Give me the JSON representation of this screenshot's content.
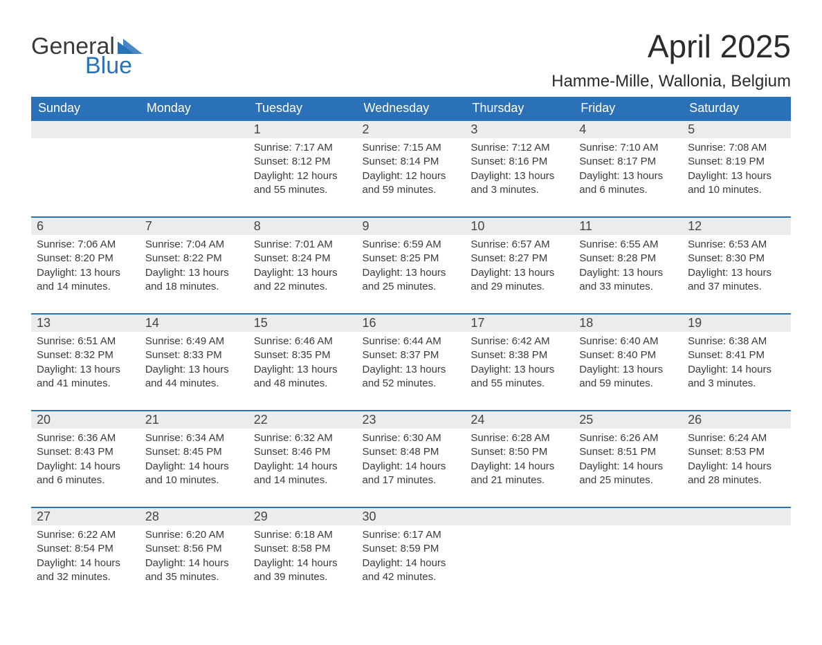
{
  "logo": {
    "text1": "General",
    "text2": "Blue",
    "tri_color": "#2a71b8"
  },
  "title": "April 2025",
  "location": "Hamme-Mille, Wallonia, Belgium",
  "colors": {
    "header_bg": "#2a71b8",
    "header_text": "#ffffff",
    "daynum_bg": "#ececec",
    "row_border": "#2a71b8",
    "body_text": "#3a3a3a",
    "page_bg": "#ffffff"
  },
  "fonts": {
    "title_size": 46,
    "location_size": 24,
    "header_size": 18,
    "cell_size": 15
  },
  "day_labels": [
    "Sunday",
    "Monday",
    "Tuesday",
    "Wednesday",
    "Thursday",
    "Friday",
    "Saturday"
  ],
  "weeks": [
    [
      null,
      null,
      {
        "num": "1",
        "sunrise": "7:17 AM",
        "sunset": "8:12 PM",
        "daylight": "12 hours and 55 minutes."
      },
      {
        "num": "2",
        "sunrise": "7:15 AM",
        "sunset": "8:14 PM",
        "daylight": "12 hours and 59 minutes."
      },
      {
        "num": "3",
        "sunrise": "7:12 AM",
        "sunset": "8:16 PM",
        "daylight": "13 hours and 3 minutes."
      },
      {
        "num": "4",
        "sunrise": "7:10 AM",
        "sunset": "8:17 PM",
        "daylight": "13 hours and 6 minutes."
      },
      {
        "num": "5",
        "sunrise": "7:08 AM",
        "sunset": "8:19 PM",
        "daylight": "13 hours and 10 minutes."
      }
    ],
    [
      {
        "num": "6",
        "sunrise": "7:06 AM",
        "sunset": "8:20 PM",
        "daylight": "13 hours and 14 minutes."
      },
      {
        "num": "7",
        "sunrise": "7:04 AM",
        "sunset": "8:22 PM",
        "daylight": "13 hours and 18 minutes."
      },
      {
        "num": "8",
        "sunrise": "7:01 AM",
        "sunset": "8:24 PM",
        "daylight": "13 hours and 22 minutes."
      },
      {
        "num": "9",
        "sunrise": "6:59 AM",
        "sunset": "8:25 PM",
        "daylight": "13 hours and 25 minutes."
      },
      {
        "num": "10",
        "sunrise": "6:57 AM",
        "sunset": "8:27 PM",
        "daylight": "13 hours and 29 minutes."
      },
      {
        "num": "11",
        "sunrise": "6:55 AM",
        "sunset": "8:28 PM",
        "daylight": "13 hours and 33 minutes."
      },
      {
        "num": "12",
        "sunrise": "6:53 AM",
        "sunset": "8:30 PM",
        "daylight": "13 hours and 37 minutes."
      }
    ],
    [
      {
        "num": "13",
        "sunrise": "6:51 AM",
        "sunset": "8:32 PM",
        "daylight": "13 hours and 41 minutes."
      },
      {
        "num": "14",
        "sunrise": "6:49 AM",
        "sunset": "8:33 PM",
        "daylight": "13 hours and 44 minutes."
      },
      {
        "num": "15",
        "sunrise": "6:46 AM",
        "sunset": "8:35 PM",
        "daylight": "13 hours and 48 minutes."
      },
      {
        "num": "16",
        "sunrise": "6:44 AM",
        "sunset": "8:37 PM",
        "daylight": "13 hours and 52 minutes."
      },
      {
        "num": "17",
        "sunrise": "6:42 AM",
        "sunset": "8:38 PM",
        "daylight": "13 hours and 55 minutes."
      },
      {
        "num": "18",
        "sunrise": "6:40 AM",
        "sunset": "8:40 PM",
        "daylight": "13 hours and 59 minutes."
      },
      {
        "num": "19",
        "sunrise": "6:38 AM",
        "sunset": "8:41 PM",
        "daylight": "14 hours and 3 minutes."
      }
    ],
    [
      {
        "num": "20",
        "sunrise": "6:36 AM",
        "sunset": "8:43 PM",
        "daylight": "14 hours and 6 minutes."
      },
      {
        "num": "21",
        "sunrise": "6:34 AM",
        "sunset": "8:45 PM",
        "daylight": "14 hours and 10 minutes."
      },
      {
        "num": "22",
        "sunrise": "6:32 AM",
        "sunset": "8:46 PM",
        "daylight": "14 hours and 14 minutes."
      },
      {
        "num": "23",
        "sunrise": "6:30 AM",
        "sunset": "8:48 PM",
        "daylight": "14 hours and 17 minutes."
      },
      {
        "num": "24",
        "sunrise": "6:28 AM",
        "sunset": "8:50 PM",
        "daylight": "14 hours and 21 minutes."
      },
      {
        "num": "25",
        "sunrise": "6:26 AM",
        "sunset": "8:51 PM",
        "daylight": "14 hours and 25 minutes."
      },
      {
        "num": "26",
        "sunrise": "6:24 AM",
        "sunset": "8:53 PM",
        "daylight": "14 hours and 28 minutes."
      }
    ],
    [
      {
        "num": "27",
        "sunrise": "6:22 AM",
        "sunset": "8:54 PM",
        "daylight": "14 hours and 32 minutes."
      },
      {
        "num": "28",
        "sunrise": "6:20 AM",
        "sunset": "8:56 PM",
        "daylight": "14 hours and 35 minutes."
      },
      {
        "num": "29",
        "sunrise": "6:18 AM",
        "sunset": "8:58 PM",
        "daylight": "14 hours and 39 minutes."
      },
      {
        "num": "30",
        "sunrise": "6:17 AM",
        "sunset": "8:59 PM",
        "daylight": "14 hours and 42 minutes."
      },
      null,
      null,
      null
    ]
  ],
  "labels": {
    "sunrise": "Sunrise: ",
    "sunset": "Sunset: ",
    "daylight": "Daylight: "
  }
}
